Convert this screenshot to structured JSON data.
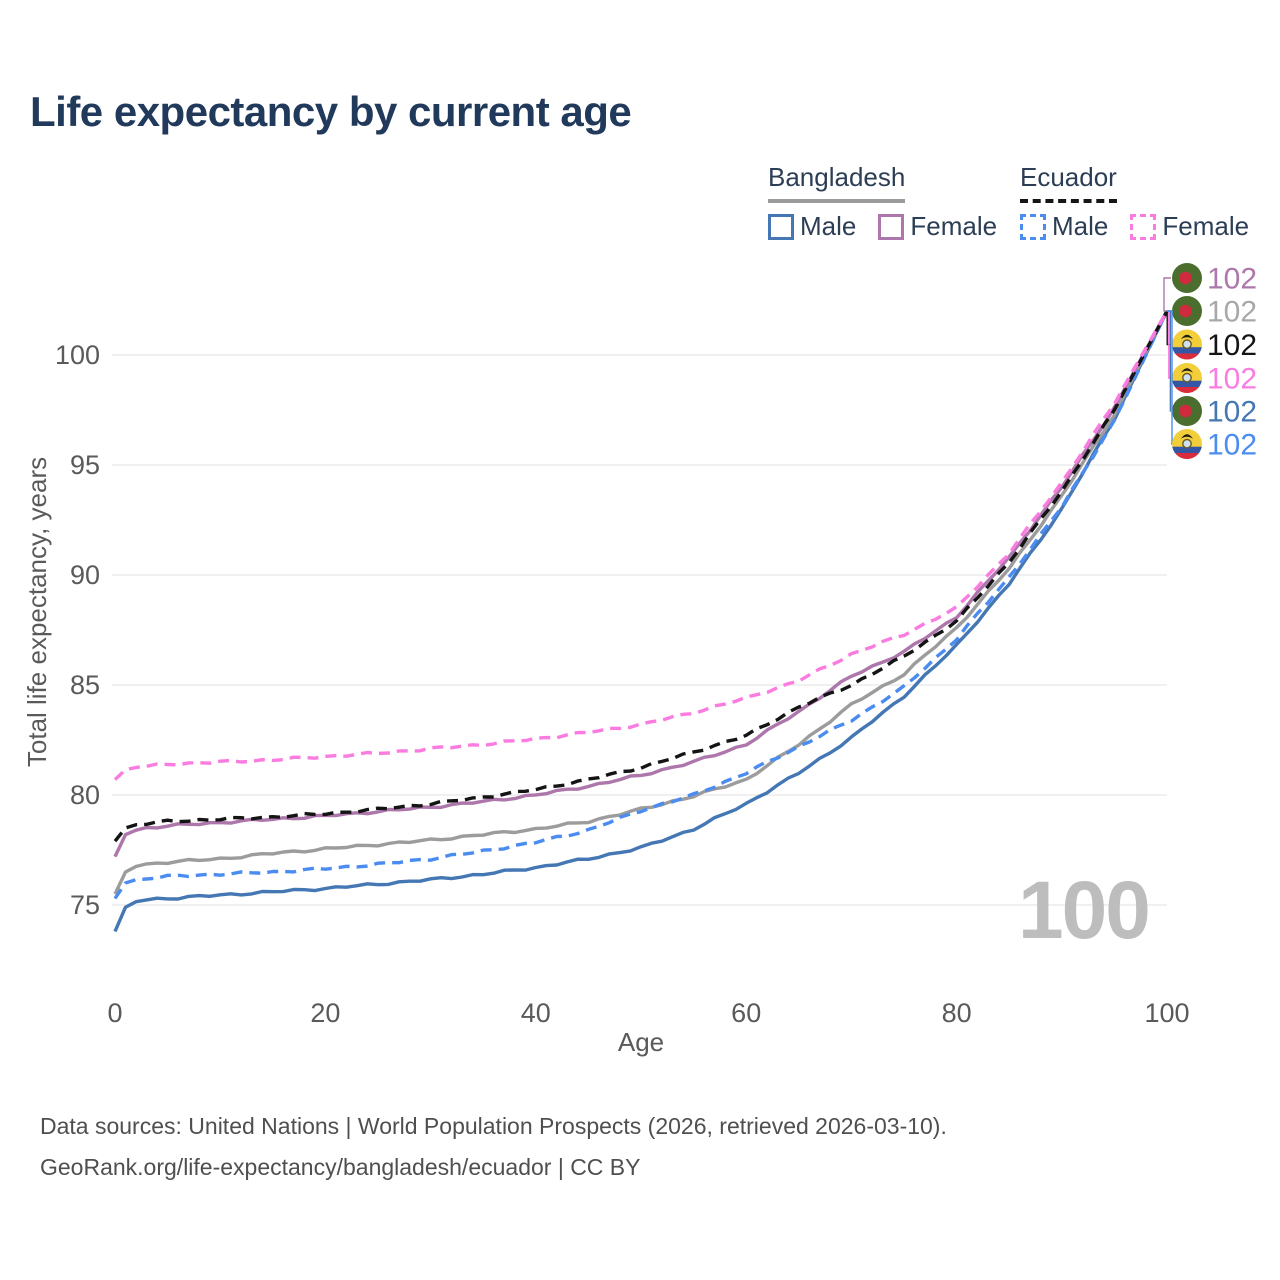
{
  "title": "Life expectancy by current age",
  "legend": {
    "bangladesh": {
      "label": "Bangladesh",
      "male_label": "Male",
      "female_label": "Female"
    },
    "ecuador": {
      "label": "Ecuador",
      "male_label": "Male",
      "female_label": "Female"
    }
  },
  "watermark": "100",
  "footer": {
    "line1": "Data sources: United Nations | World Population Prospects (2026, retrieved 2026-03-10).",
    "line2": "GeoRank.org/life-expectancy/bangladesh/ecuador | CC BY"
  },
  "colors": {
    "title": "#213a5c",
    "axis_text": "#5a5a5a",
    "gridline": "#ebebeb",
    "watermark": "#bdbdbd",
    "bangladesh_male": "#4477b3",
    "bangladesh_female": "#ad77ab",
    "bangladesh_total": "#9c9c9c",
    "ecuador_male": "#4b8cf0",
    "ecuador_female": "#fb7ce0",
    "ecuador_total": "#141414",
    "flag_bd_green": "#4b6e2e",
    "flag_bd_red": "#cf2a3e",
    "flag_ec_yellow": "#f2cf3a",
    "flag_ec_blue": "#3356a5",
    "flag_ec_red": "#da2c3c"
  },
  "chart_data": {
    "type": "line",
    "title": "Life expectancy by current age",
    "xlabel": "Age",
    "ylabel": "Total life expectancy, years",
    "x_ticks": [
      0,
      20,
      40,
      60,
      80,
      100
    ],
    "y_ticks": [
      75,
      80,
      85,
      90,
      95,
      100
    ],
    "xlim": [
      0,
      100
    ],
    "ylim": [
      73.5,
      103
    ],
    "grid": "horizontal-only",
    "legend_position": "top-right",
    "ages": [
      0,
      1,
      2,
      3,
      5,
      10,
      15,
      20,
      25,
      30,
      35,
      40,
      45,
      50,
      55,
      60,
      65,
      70,
      75,
      80,
      85,
      90,
      95,
      100
    ],
    "series": [
      {
        "id": "bd-male",
        "name": "Bangladesh Male",
        "country": "bangladesh",
        "color": "#4477b3",
        "dashed": false,
        "values": [
          73.8,
          74.9,
          75.15,
          75.25,
          75.3,
          75.45,
          75.6,
          75.75,
          75.95,
          76.15,
          76.4,
          76.7,
          77.1,
          77.6,
          78.45,
          79.6,
          81.0,
          82.6,
          84.5,
          86.8,
          89.6,
          93.0,
          97.1,
          102
        ]
      },
      {
        "id": "bd-total",
        "name": "Bangladesh",
        "country": "bangladesh",
        "color": "#9c9c9c",
        "dashed": false,
        "values": [
          75.5,
          76.5,
          76.75,
          76.85,
          76.95,
          77.1,
          77.35,
          77.55,
          77.75,
          77.95,
          78.2,
          78.45,
          78.8,
          79.35,
          79.95,
          80.7,
          82.3,
          84.1,
          85.5,
          87.6,
          90.3,
          93.6,
          97.3,
          102
        ]
      },
      {
        "id": "bd-female",
        "name": "Bangladesh Female",
        "country": "bangladesh",
        "color": "#ad77ab",
        "dashed": false,
        "values": [
          77.2,
          78.2,
          78.4,
          78.5,
          78.6,
          78.75,
          78.9,
          79.05,
          79.25,
          79.45,
          79.7,
          80.0,
          80.4,
          80.9,
          81.5,
          82.3,
          83.8,
          85.4,
          86.5,
          88.1,
          90.8,
          94.0,
          97.6,
          102
        ]
      },
      {
        "id": "ec-male",
        "name": "Ecuador Male",
        "country": "ecuador",
        "color": "#4b8cf0",
        "dashed": true,
        "values": [
          75.3,
          76.0,
          76.15,
          76.2,
          76.3,
          76.4,
          76.5,
          76.65,
          76.85,
          77.1,
          77.45,
          77.85,
          78.4,
          79.3,
          80.0,
          81.0,
          82.2,
          83.4,
          84.9,
          87.1,
          89.9,
          93.1,
          97.0,
          102
        ]
      },
      {
        "id": "ec-total",
        "name": "Ecuador",
        "country": "ecuador",
        "color": "#141414",
        "dashed": true,
        "values": [
          77.9,
          78.5,
          78.65,
          78.7,
          78.8,
          78.9,
          79.0,
          79.15,
          79.35,
          79.6,
          79.9,
          80.25,
          80.7,
          81.25,
          81.95,
          82.7,
          84.0,
          85.0,
          86.3,
          87.9,
          90.6,
          93.8,
          97.5,
          102
        ]
      },
      {
        "id": "ec-female",
        "name": "Ecuador Female",
        "country": "ecuador",
        "color": "#fb7ce0",
        "dashed": true,
        "values": [
          80.7,
          81.15,
          81.25,
          81.3,
          81.4,
          81.5,
          81.6,
          81.75,
          81.9,
          82.1,
          82.3,
          82.55,
          82.85,
          83.2,
          83.75,
          84.4,
          85.2,
          86.4,
          87.3,
          88.5,
          91.0,
          94.2,
          97.8,
          102
        ]
      }
    ],
    "end_labels": [
      {
        "series": "bd-female",
        "flag": "bangladesh",
        "value": "102",
        "color": "#ad77ab"
      },
      {
        "series": "bd-total",
        "flag": "bangladesh",
        "value": "102",
        "color": "#a8a8a8"
      },
      {
        "series": "ec-total",
        "flag": "ecuador",
        "value": "102",
        "color": "#141414"
      },
      {
        "series": "ec-female",
        "flag": "ecuador",
        "value": "102",
        "color": "#fb7ce0"
      },
      {
        "series": "bd-male",
        "flag": "bangladesh",
        "value": "102",
        "color": "#4477b3"
      },
      {
        "series": "ec-male",
        "flag": "ecuador",
        "value": "102",
        "color": "#4b8cf0"
      }
    ]
  }
}
